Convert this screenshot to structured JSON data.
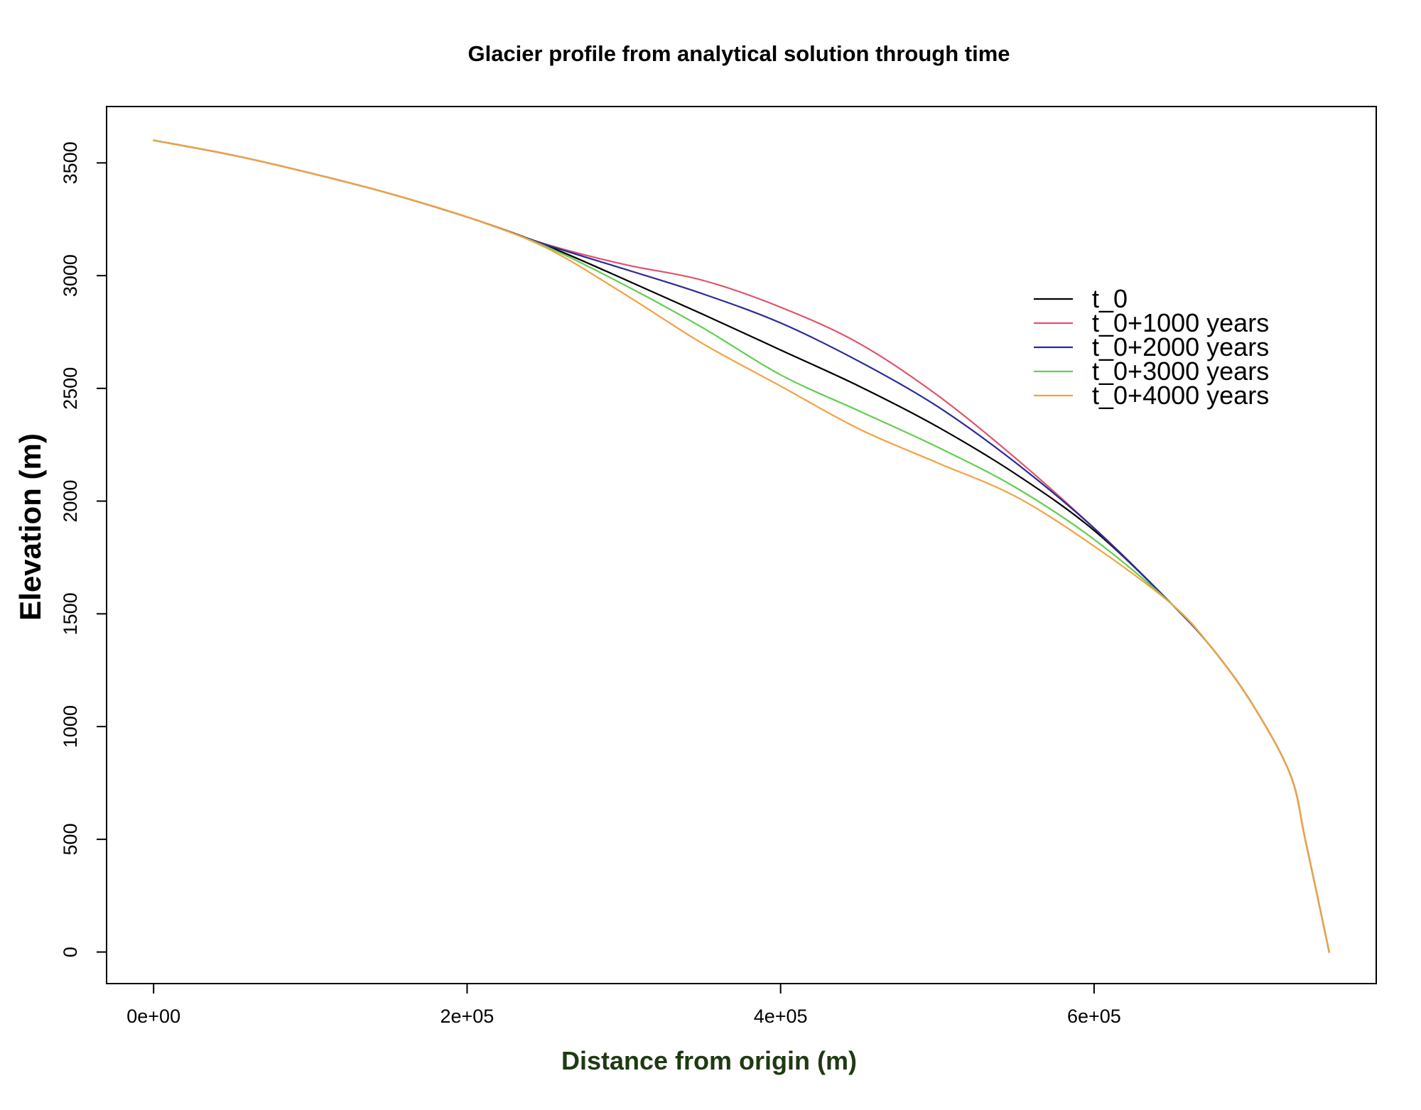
{
  "chart_data": {
    "type": "line",
    "title": "Glacier profile from analytical solution through time",
    "xlabel": "Distance from origin (m)",
    "ylabel": "Elevation (m)",
    "xlim": [
      -30000,
      780000
    ],
    "ylim": [
      -140,
      3750
    ],
    "xticks": [
      0,
      200000,
      400000,
      600000
    ],
    "xtick_labels": [
      "0e+00",
      "2e+05",
      "4e+05",
      "6e+05"
    ],
    "yticks": [
      0,
      500,
      1000,
      1500,
      2000,
      2500,
      3000,
      3500
    ],
    "ytick_labels": [
      "0",
      "500",
      "1000",
      "1500",
      "2000",
      "2500",
      "3000",
      "3500"
    ],
    "grid": false,
    "legend_position": "top-right",
    "colors": {
      "xlabel": "#1e3a12"
    },
    "series": [
      {
        "name": "t_0",
        "color": "#000000",
        "x": [
          0,
          50000,
          100000,
          150000,
          200000,
          250000,
          300000,
          350000,
          400000,
          450000,
          500000,
          550000,
          600000,
          650000,
          675000,
          700000,
          725000,
          735000,
          750000
        ],
        "y": [
          3600,
          3535,
          3455,
          3365,
          3260,
          3135,
          2985,
          2830,
          2670,
          2510,
          2330,
          2120,
          1870,
          1540,
          1350,
          1110,
          790,
          490,
          0
        ]
      },
      {
        "name": "t_0+1000 years",
        "color": "#df536b",
        "x": [
          0,
          50000,
          100000,
          150000,
          200000,
          250000,
          300000,
          350000,
          400000,
          450000,
          500000,
          550000,
          600000,
          650000,
          675000,
          700000,
          725000,
          735000,
          750000
        ],
        "y": [
          3600,
          3535,
          3455,
          3365,
          3260,
          3140,
          3050,
          2980,
          2860,
          2700,
          2470,
          2190,
          1880,
          1540,
          1350,
          1110,
          790,
          490,
          0
        ]
      },
      {
        "name": "t_0+2000 years",
        "color": "#2a2a9a",
        "x": [
          0,
          50000,
          100000,
          150000,
          200000,
          250000,
          300000,
          350000,
          400000,
          450000,
          500000,
          550000,
          600000,
          650000,
          675000,
          700000,
          725000,
          735000,
          750000
        ],
        "y": [
          3600,
          3535,
          3455,
          3365,
          3260,
          3138,
          3030,
          2920,
          2790,
          2620,
          2420,
          2170,
          1880,
          1540,
          1350,
          1110,
          790,
          490,
          0
        ]
      },
      {
        "name": "t_0+3000 years",
        "color": "#61d04f",
        "x": [
          0,
          50000,
          100000,
          150000,
          200000,
          250000,
          300000,
          350000,
          400000,
          450000,
          500000,
          550000,
          600000,
          650000,
          675000,
          700000,
          725000,
          735000,
          750000
        ],
        "y": [
          3600,
          3535,
          3455,
          3365,
          3260,
          3130,
          2960,
          2770,
          2560,
          2400,
          2240,
          2060,
          1830,
          1540,
          1350,
          1110,
          790,
          490,
          0
        ]
      },
      {
        "name": "t_0+4000 years",
        "color": "#f5a142",
        "x": [
          0,
          50000,
          100000,
          150000,
          200000,
          250000,
          300000,
          350000,
          400000,
          450000,
          500000,
          550000,
          600000,
          650000,
          675000,
          700000,
          725000,
          735000,
          750000
        ],
        "y": [
          3600,
          3535,
          3455,
          3365,
          3260,
          3125,
          2920,
          2700,
          2510,
          2320,
          2170,
          2020,
          1800,
          1540,
          1350,
          1110,
          790,
          490,
          0
        ]
      }
    ]
  }
}
